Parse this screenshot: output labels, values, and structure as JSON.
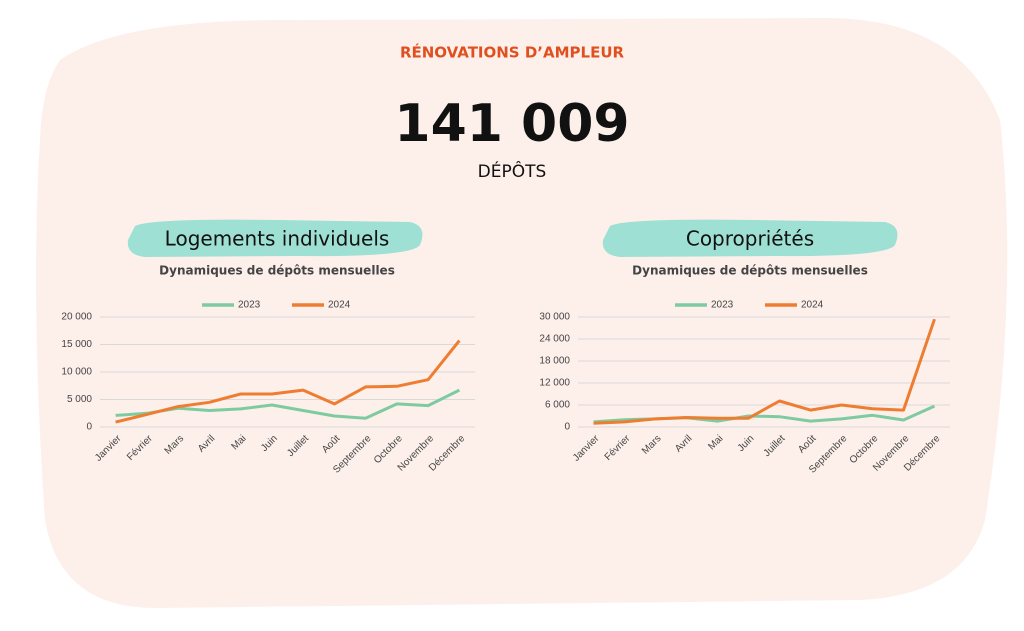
{
  "header": {
    "title": "RÉNOVATIONS D’AMPLEUR",
    "total": "141 009",
    "unit": "DÉPÔTS"
  },
  "chart_data": [
    {
      "type": "line",
      "title": "Logements individuels",
      "subtitle": "Dynamiques de dépôts mensuelles",
      "categories": [
        "Janvier",
        "Février",
        "Mars",
        "Avril",
        "Mai",
        "Juin",
        "Juillet",
        "Août",
        "Septembre",
        "Octobre",
        "Novembre",
        "Décembre"
      ],
      "series": [
        {
          "name": "2023",
          "color": "#7ecba1",
          "values": [
            2100,
            2500,
            3400,
            3000,
            3300,
            4000,
            3000,
            2000,
            1600,
            4200,
            3900,
            6700
          ]
        },
        {
          "name": "2024",
          "color": "#ee7d31",
          "values": [
            900,
            2300,
            3700,
            4500,
            6000,
            6000,
            6700,
            4200,
            7300,
            7400,
            8600,
            15700
          ]
        }
      ],
      "ylim": [
        0,
        20000
      ],
      "yticks": [
        0,
        {
          "value": 5000,
          "label": "5 000"
        },
        {
          "value": 10000,
          "label": "10 000"
        },
        {
          "value": 15000,
          "label": "15 000"
        },
        {
          "value": 20000,
          "label": "20 000"
        }
      ],
      "grid": true,
      "legend": "top"
    },
    {
      "type": "line",
      "title": "Copropriétés",
      "subtitle": "Dynamiques de dépôts mensuelles",
      "categories": [
        "Janvier",
        "Février",
        "Mars",
        "Avril",
        "Mai",
        "Juin",
        "Juillet",
        "Août",
        "Septembre",
        "Octobre",
        "Novembre",
        "Décembre"
      ],
      "series": [
        {
          "name": "2023",
          "color": "#7ecba1",
          "values": [
            1400,
            2000,
            2200,
            2500,
            1600,
            3000,
            2800,
            1600,
            2200,
            3200,
            1900,
            5700
          ]
        },
        {
          "name": "2024",
          "color": "#ee7d31",
          "values": [
            1000,
            1400,
            2200,
            2600,
            2400,
            2400,
            7100,
            4600,
            6000,
            5000,
            4600,
            29400
          ]
        }
      ],
      "ylim": [
        0,
        30000
      ],
      "yticks": [
        0,
        {
          "value": 6000,
          "label": "6 000"
        },
        {
          "value": 12000,
          "label": "12 000"
        },
        {
          "value": 18000,
          "label": "18 000"
        },
        {
          "value": 24000,
          "label": "24 000"
        },
        {
          "value": 30000,
          "label": "30 000"
        }
      ],
      "grid": true,
      "legend": "top"
    }
  ]
}
